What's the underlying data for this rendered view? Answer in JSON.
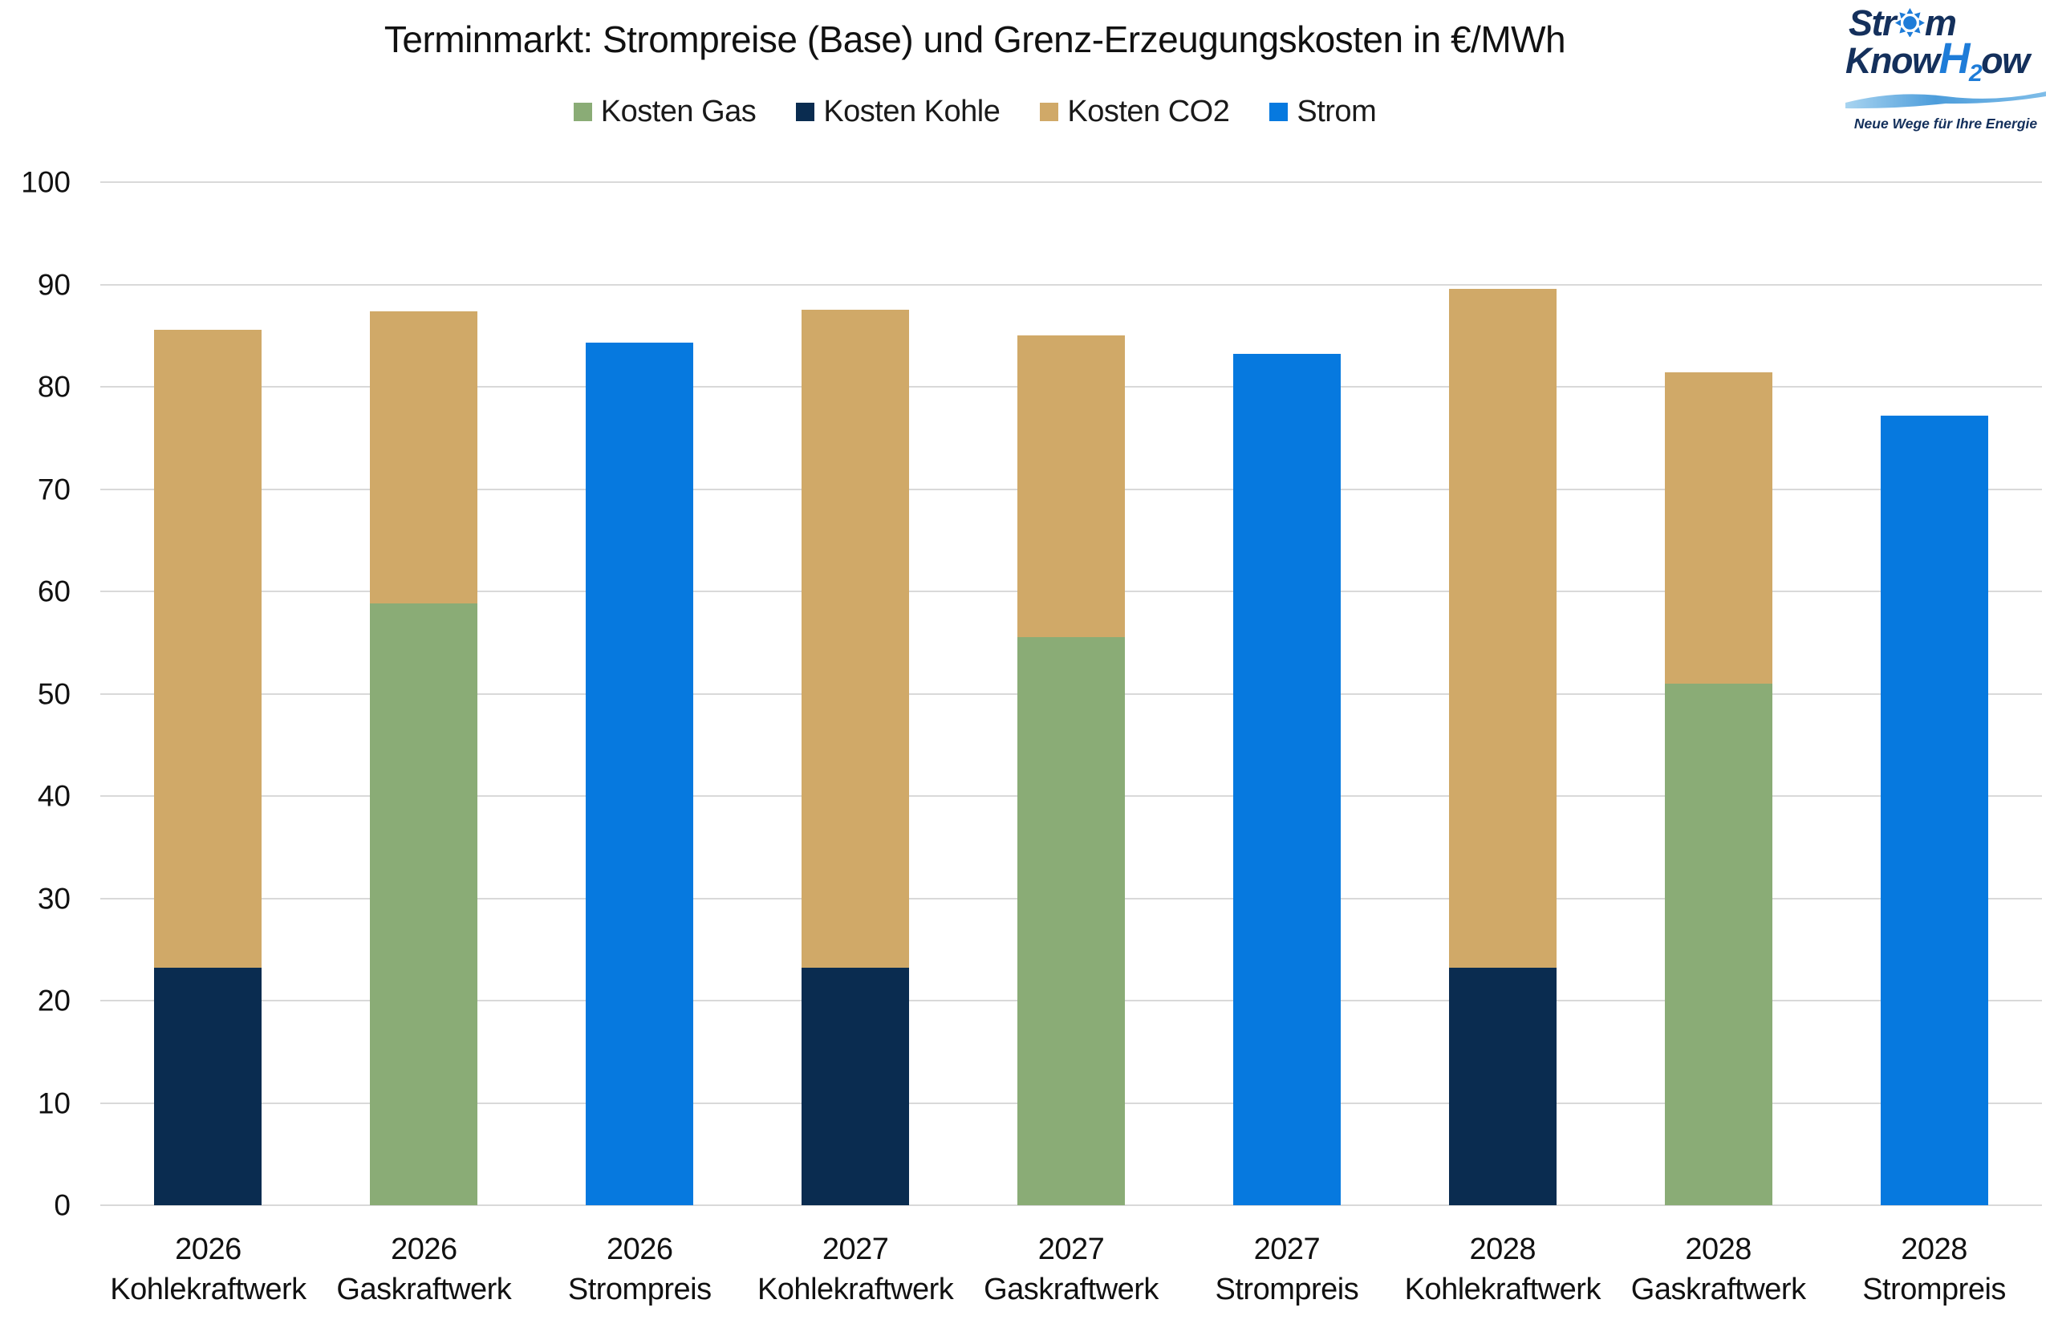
{
  "title": "Terminmarkt: Strompreise (Base) und Grenz-Erzeugungskosten in €/MWh",
  "logo": {
    "line1_pre": "Str",
    "line1_post": "m",
    "line2_pre": "Know",
    "line2_h": "H",
    "line2_sub": "2",
    "line2_post": "ow",
    "tagline": "Neue Wege für Ihre Energie",
    "navy": "#14305c",
    "blue": "#1e7cd8",
    "wave_blue": "#6db3e3"
  },
  "colors": {
    "gas": "#8aac76",
    "kohle": "#0a2c50",
    "co2": "#d0a968",
    "strom": "#0679df",
    "gridline": "#d9d9d9",
    "text": "#111111"
  },
  "chart_data": {
    "type": "bar",
    "stacked": true,
    "title": "Terminmarkt: Strompreise (Base) und Grenz-Erzeugungskosten in €/MWh",
    "xlabel": "",
    "ylabel": "",
    "ylim": [
      0,
      100
    ],
    "yticks": [
      0,
      10,
      20,
      30,
      40,
      50,
      60,
      70,
      80,
      90,
      100
    ],
    "grid": true,
    "legend_position": "top",
    "categories": [
      {
        "year": "2026",
        "label": "Kohlekraftwerk"
      },
      {
        "year": "2026",
        "label": "Gaskraftwerk"
      },
      {
        "year": "2026",
        "label": "Strompreis"
      },
      {
        "year": "2027",
        "label": "Kohlekraftwerk"
      },
      {
        "year": "2027",
        "label": "Gaskraftwerk"
      },
      {
        "year": "2027",
        "label": "Strompreis"
      },
      {
        "year": "2028",
        "label": "Kohlekraftwerk"
      },
      {
        "year": "2028",
        "label": "Gaskraftwerk"
      },
      {
        "year": "2028",
        "label": "Strompreis"
      }
    ],
    "series": [
      {
        "name": "Kosten Gas",
        "color": "#8aac76",
        "values": [
          0,
          58.8,
          0,
          0,
          55.5,
          0,
          0,
          51.0,
          0
        ]
      },
      {
        "name": "Kosten Kohle",
        "color": "#0a2c50",
        "values": [
          23.2,
          0,
          0,
          23.2,
          0,
          0,
          23.2,
          0,
          0
        ]
      },
      {
        "name": "Kosten CO2",
        "color": "#d0a968",
        "values": [
          62.4,
          28.6,
          0,
          64.3,
          29.5,
          0,
          66.4,
          30.4,
          0
        ]
      },
      {
        "name": "Strom",
        "color": "#0679df",
        "values": [
          0,
          0,
          84.3,
          0,
          0,
          83.2,
          0,
          0,
          77.2
        ]
      }
    ],
    "bar_totals": [
      85.6,
      87.4,
      84.3,
      87.5,
      85.0,
      83.2,
      89.6,
      81.4,
      77.2
    ]
  }
}
